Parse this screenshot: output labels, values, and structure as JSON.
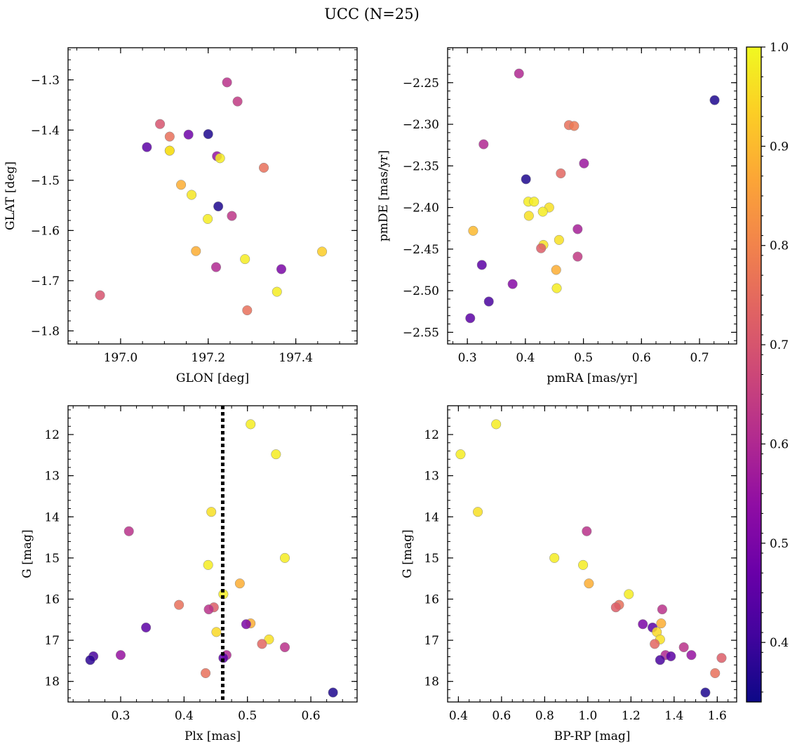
{
  "figure": {
    "title": "UCC (N=25)"
  },
  "colorbar": {
    "cmap": "plasma",
    "vmin": 0.34,
    "vmax": 1.0,
    "ticks": [
      0.4,
      0.5,
      0.6,
      0.7,
      0.8,
      0.9,
      1.0
    ],
    "tick_labels": [
      "0.4",
      "0.5",
      "0.6",
      "0.7",
      "0.8",
      "0.9",
      "1.0"
    ]
  },
  "chart_data": [
    {
      "type": "scatter",
      "title": "",
      "xlabel": "GLON [deg]",
      "ylabel": "GLAT [deg]",
      "xlim": [
        196.88,
        197.54
      ],
      "ylim": [
        -1.826,
        -1.236
      ],
      "y_inverted": false,
      "xticks": [
        197.0,
        197.2,
        197.4
      ],
      "xtick_labels": [
        "197.0",
        "197.2",
        "197.4"
      ],
      "yticks": [
        -1.8,
        -1.7,
        -1.6,
        -1.5,
        -1.4,
        -1.3
      ],
      "ytick_labels": [
        "−1.8",
        "−1.7",
        "−1.6",
        "−1.5",
        "−1.4",
        "−1.3"
      ],
      "x": [
        197.243,
        197.267,
        197.09,
        197.112,
        197.2,
        197.155,
        197.06,
        197.112,
        197.22,
        197.227,
        197.327,
        197.138,
        197.162,
        197.223,
        197.254,
        197.199,
        197.172,
        197.218,
        197.284,
        197.367,
        197.46,
        197.357,
        196.953,
        197.289,
        197.112
      ],
      "y": [
        -1.305,
        -1.343,
        -1.388,
        -1.413,
        -1.408,
        -1.409,
        -1.434,
        -1.441,
        -1.452,
        -1.456,
        -1.475,
        -1.509,
        -1.529,
        -1.552,
        -1.571,
        -1.577,
        -1.641,
        -1.673,
        -1.657,
        -1.677,
        -1.642,
        -1.722,
        -1.729,
        -1.759,
        -1.441
      ],
      "c": [
        0.62,
        0.64,
        0.7,
        0.76,
        0.36,
        0.48,
        0.45,
        0.96,
        0.55,
        0.98,
        0.76,
        0.88,
        0.97,
        0.36,
        0.63,
        0.98,
        0.88,
        0.6,
        0.98,
        0.5,
        0.93,
        0.98,
        0.7,
        0.76,
        0.96
      ]
    },
    {
      "type": "scatter",
      "title": "",
      "xlabel": "pmRA [mas/yr]",
      "ylabel": "pmDE [mas/yr]",
      "xlim": [
        0.266,
        0.764
      ],
      "ylim": [
        -2.564,
        -2.208
      ],
      "y_inverted": false,
      "xticks": [
        0.3,
        0.4,
        0.5,
        0.6,
        0.7
      ],
      "xtick_labels": [
        "0.3",
        "0.4",
        "0.5",
        "0.6",
        "0.7"
      ],
      "yticks": [
        -2.55,
        -2.5,
        -2.45,
        -2.4,
        -2.35,
        -2.3,
        -2.25
      ],
      "ytick_labels": [
        "−2.55",
        "−2.50",
        "−2.45",
        "−2.40",
        "−2.35",
        "−2.30",
        "−2.25"
      ],
      "x": [
        0.389,
        0.726,
        0.475,
        0.484,
        0.328,
        0.501,
        0.401,
        0.461,
        0.405,
        0.415,
        0.441,
        0.43,
        0.406,
        0.31,
        0.49,
        0.458,
        0.431,
        0.427,
        0.49,
        0.453,
        0.454,
        0.325,
        0.378,
        0.337,
        0.305
      ],
      "y": [
        -2.239,
        -2.271,
        -2.301,
        -2.302,
        -2.324,
        -2.347,
        -2.366,
        -2.359,
        -2.393,
        -2.393,
        -2.4,
        -2.405,
        -2.41,
        -2.428,
        -2.426,
        -2.439,
        -2.445,
        -2.449,
        -2.459,
        -2.475,
        -2.497,
        -2.469,
        -2.492,
        -2.513,
        -2.533
      ],
      "c": [
        0.6,
        0.36,
        0.76,
        0.78,
        0.6,
        0.56,
        0.36,
        0.74,
        0.98,
        0.98,
        0.96,
        0.98,
        0.96,
        0.9,
        0.58,
        0.96,
        0.96,
        0.72,
        0.64,
        0.88,
        0.98,
        0.45,
        0.52,
        0.42,
        0.45
      ]
    },
    {
      "type": "scatter",
      "title": "",
      "xlabel": "Plx [mas]",
      "ylabel": "G [mag]",
      "xlim": [
        0.217,
        0.673
      ],
      "ylim": [
        18.5,
        11.3
      ],
      "y_inverted": true,
      "vline": {
        "x": 0.461,
        "style": "dotted",
        "color": "#000000"
      },
      "xticks": [
        0.3,
        0.4,
        0.5,
        0.6
      ],
      "xtick_labels": [
        "0.3",
        "0.4",
        "0.5",
        "0.6"
      ],
      "yticks": [
        12,
        13,
        14,
        15,
        16,
        17,
        18
      ],
      "ytick_labels": [
        "12",
        "13",
        "14",
        "15",
        "16",
        "17",
        "18"
      ],
      "x": [
        0.505,
        0.545,
        0.443,
        0.313,
        0.559,
        0.438,
        0.488,
        0.462,
        0.392,
        0.447,
        0.439,
        0.505,
        0.498,
        0.34,
        0.451,
        0.534,
        0.523,
        0.559,
        0.467,
        0.3,
        0.462,
        0.257,
        0.252,
        0.434,
        0.635
      ],
      "y": [
        11.75,
        12.48,
        13.88,
        14.35,
        15.0,
        15.17,
        15.62,
        15.88,
        16.14,
        16.2,
        16.25,
        16.59,
        16.61,
        16.69,
        16.8,
        16.98,
        17.09,
        17.17,
        17.36,
        17.36,
        17.43,
        17.39,
        17.48,
        17.8,
        18.27
      ],
      "c": [
        0.98,
        0.98,
        0.96,
        0.62,
        0.98,
        0.98,
        0.88,
        0.98,
        0.76,
        0.72,
        0.62,
        0.88,
        0.5,
        0.45,
        0.95,
        0.96,
        0.74,
        0.62,
        0.6,
        0.55,
        0.45,
        0.42,
        0.38,
        0.76,
        0.36
      ]
    },
    {
      "type": "scatter",
      "title": "",
      "xlabel": "BP-RP [mag]",
      "ylabel": "G [mag]",
      "xlim": [
        0.35,
        1.69
      ],
      "ylim": [
        18.5,
        11.3
      ],
      "y_inverted": true,
      "xticks": [
        0.4,
        0.6,
        0.8,
        1.0,
        1.2,
        1.4,
        1.6
      ],
      "xtick_labels": [
        "0.4",
        "0.6",
        "0.8",
        "1.0",
        "1.2",
        "1.4",
        "1.6"
      ],
      "yticks": [
        12,
        13,
        14,
        15,
        16,
        17,
        18
      ],
      "ytick_labels": [
        "12",
        "13",
        "14",
        "15",
        "16",
        "17",
        "18"
      ],
      "x": [
        0.575,
        0.41,
        0.49,
        0.995,
        0.845,
        0.978,
        1.005,
        1.19,
        1.145,
        1.13,
        1.345,
        1.34,
        1.255,
        1.3,
        1.32,
        1.335,
        1.31,
        1.445,
        1.36,
        1.48,
        1.385,
        1.335,
        1.62,
        1.59,
        1.545
      ],
      "y": [
        11.75,
        12.48,
        13.88,
        14.35,
        15.0,
        15.17,
        15.62,
        15.88,
        16.14,
        16.2,
        16.25,
        16.59,
        16.61,
        16.69,
        16.8,
        16.98,
        17.09,
        17.17,
        17.36,
        17.36,
        17.39,
        17.48,
        17.43,
        17.8,
        18.27
      ],
      "c": [
        0.98,
        0.98,
        0.96,
        0.62,
        0.98,
        0.98,
        0.88,
        0.98,
        0.76,
        0.72,
        0.62,
        0.88,
        0.5,
        0.45,
        0.95,
        0.96,
        0.74,
        0.62,
        0.6,
        0.55,
        0.45,
        0.42,
        0.72,
        0.76,
        0.36
      ]
    }
  ]
}
